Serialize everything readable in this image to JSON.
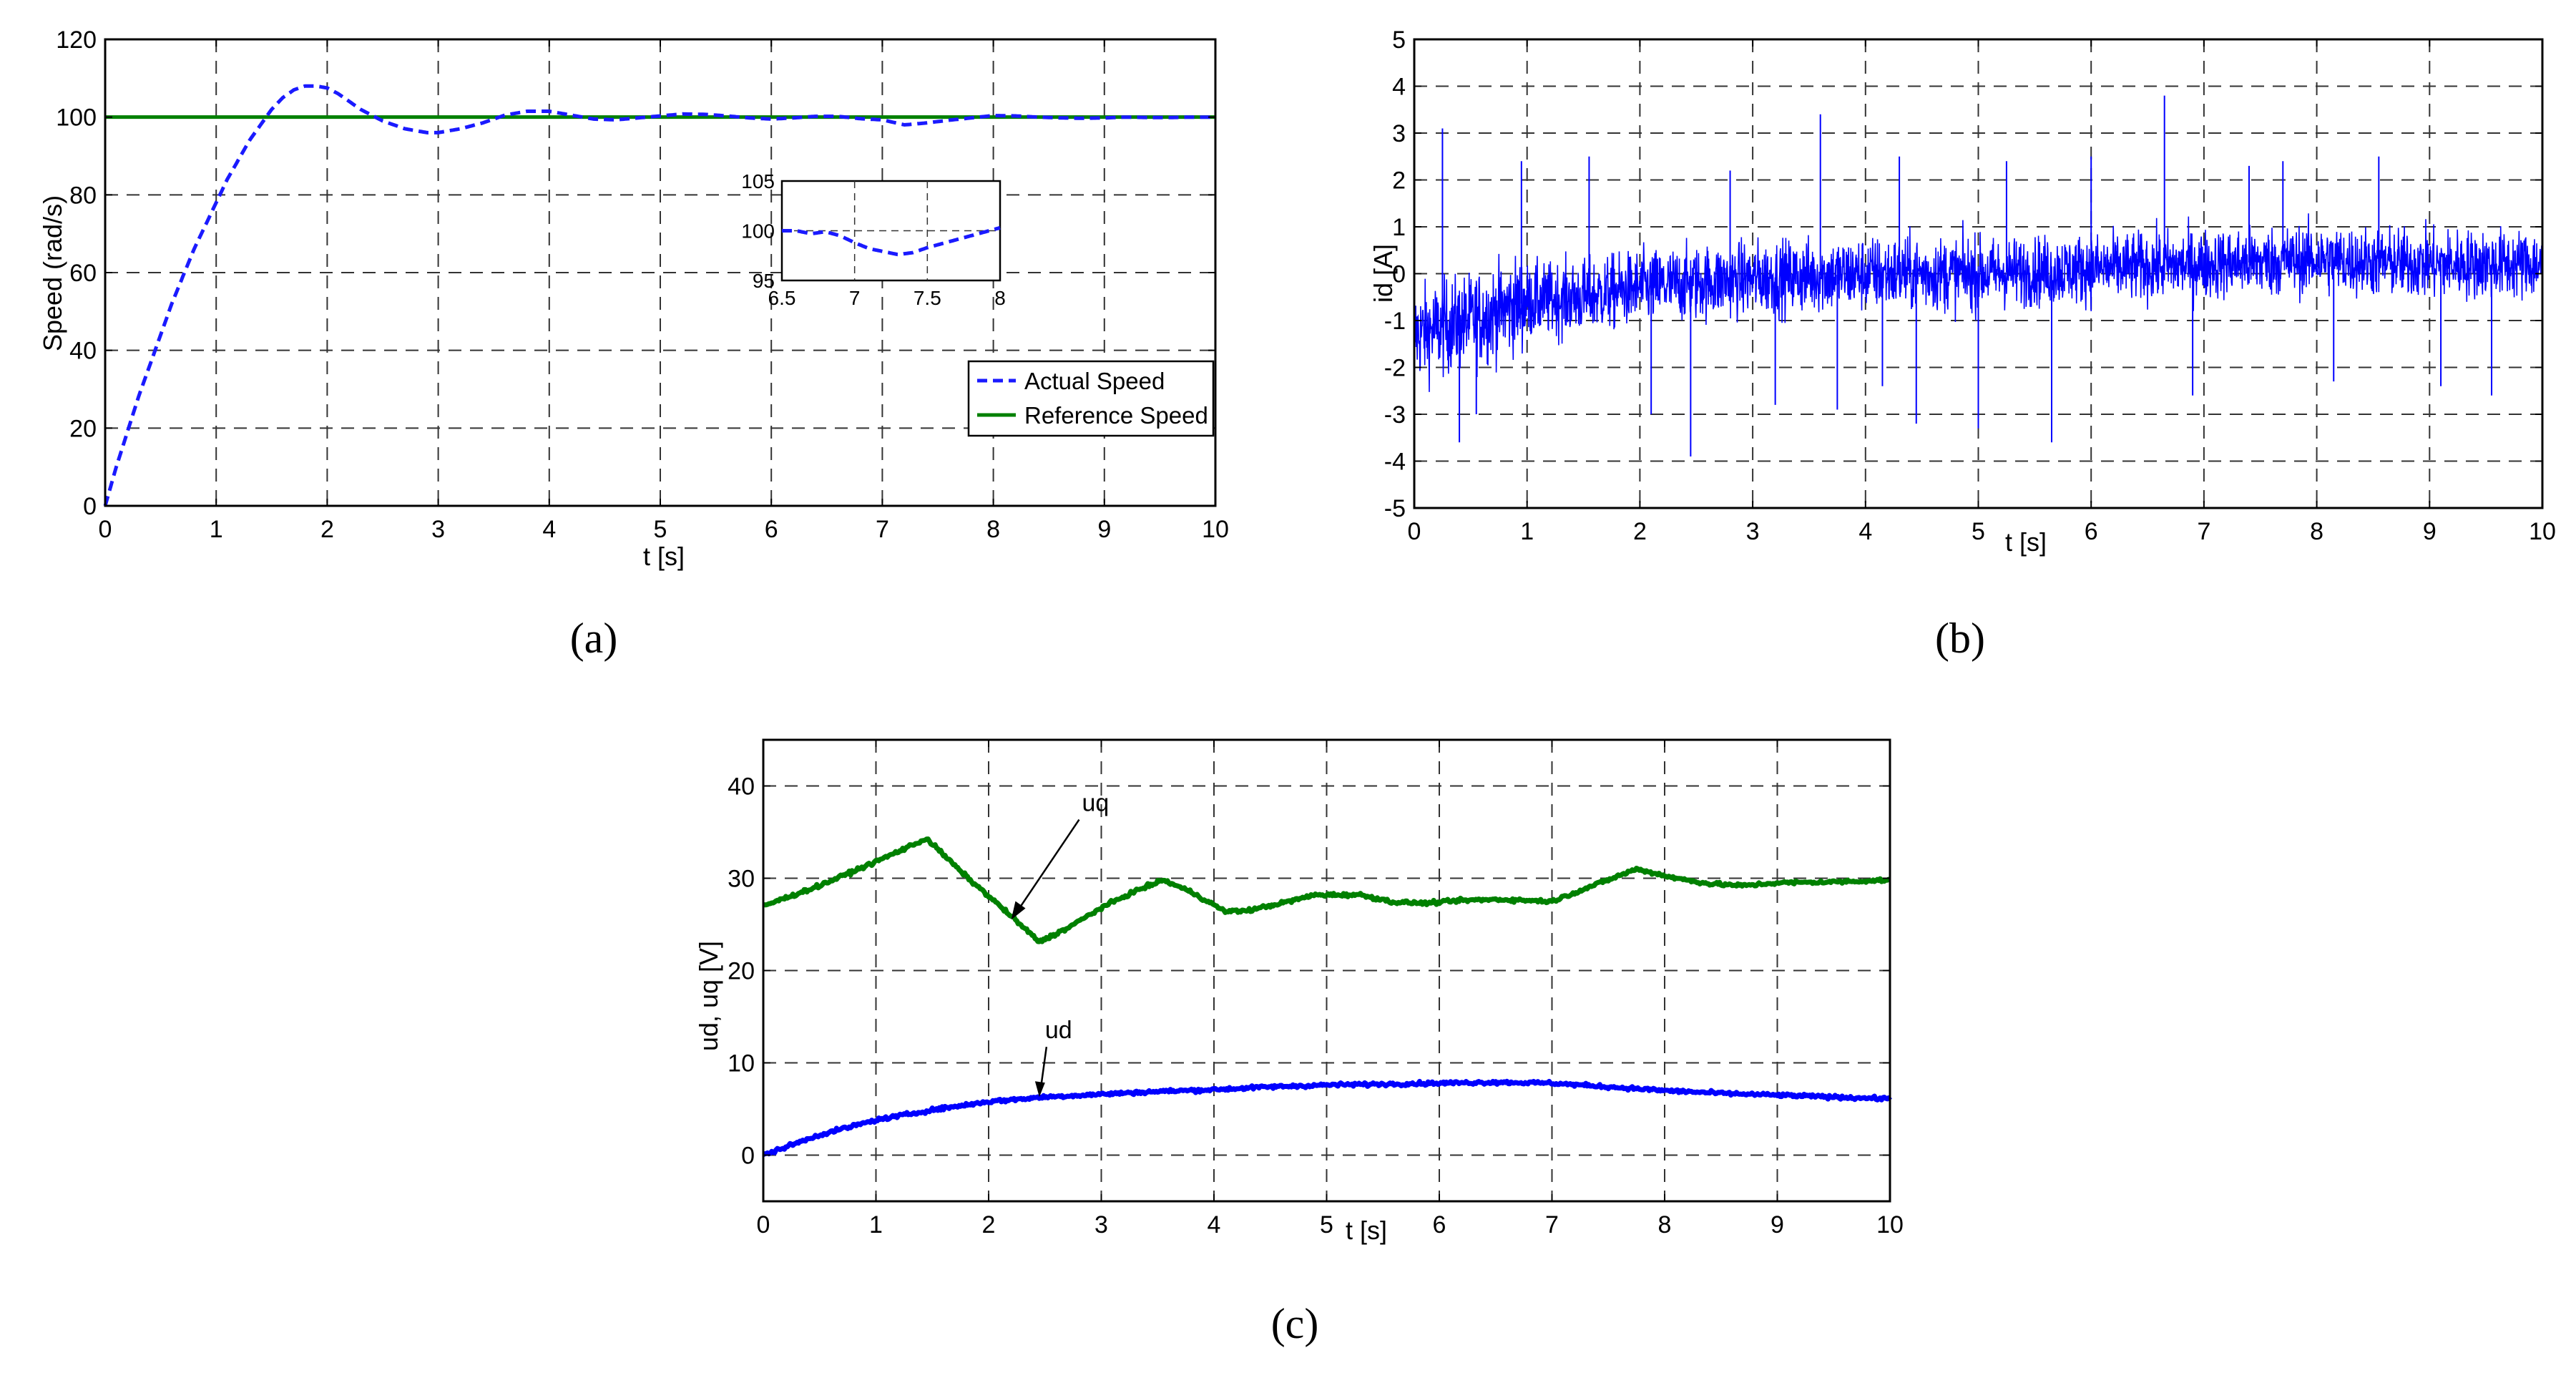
{
  "chart_data": [
    {
      "type": "line",
      "panel_label": "(a)",
      "xlabel": "t [s]",
      "ylabel": "Speed (rad/s)",
      "xlim": [
        0,
        10
      ],
      "ylim": [
        0,
        120
      ],
      "xticks": [
        0,
        1,
        2,
        3,
        4,
        5,
        6,
        7,
        8,
        9,
        10
      ],
      "yticks": [
        0,
        20,
        40,
        60,
        80,
        100,
        120
      ],
      "grid": true,
      "legend_position": "bottom-right",
      "series": [
        {
          "name": "Actual Speed",
          "color": "#1a1aff",
          "style": "dashed",
          "x": [
            0,
            0.1,
            0.2,
            0.3,
            0.4,
            0.5,
            0.6,
            0.7,
            0.8,
            0.9,
            1.0,
            1.1,
            1.2,
            1.3,
            1.4,
            1.5,
            1.6,
            1.7,
            1.8,
            1.9,
            2.0,
            2.1,
            2.2,
            2.3,
            2.4,
            2.5,
            2.6,
            2.7,
            2.8,
            2.9,
            3.0,
            3.2,
            3.4,
            3.6,
            3.8,
            4.0,
            4.2,
            4.4,
            4.6,
            4.8,
            5.0,
            5.2,
            5.4,
            5.6,
            5.8,
            6.0,
            6.2,
            6.4,
            6.6,
            6.8,
            7.0,
            7.2,
            7.4,
            7.6,
            7.8,
            8.0,
            8.2,
            8.4,
            8.6,
            8.8,
            9.0,
            9.2,
            9.4,
            9.6,
            9.8,
            10.0
          ],
          "y": [
            0,
            10,
            19,
            28,
            36,
            44,
            52,
            59,
            66,
            72,
            78,
            84,
            89,
            94,
            98,
            102,
            105,
            107,
            108,
            108,
            107.5,
            106,
            104,
            102,
            100.5,
            99,
            98,
            97,
            96.5,
            96,
            96,
            97,
            98.5,
            100.5,
            101.5,
            101.5,
            100.5,
            99.5,
            99.3,
            99.8,
            100.3,
            100.8,
            100.7,
            100.3,
            99.8,
            99.5,
            99.8,
            100.2,
            100.2,
            99.6,
            99.3,
            98,
            98.5,
            99.2,
            99.8,
            100.4,
            100.3,
            100,
            99.8,
            99.7,
            99.8,
            100,
            99.9,
            99.9,
            100,
            100
          ]
        },
        {
          "name": "Reference Speed",
          "color": "#008000",
          "style": "solid",
          "x": [
            0,
            10
          ],
          "y": [
            100,
            100
          ]
        }
      ],
      "inset": {
        "xlim": [
          6.5,
          8
        ],
        "ylim": [
          95,
          105
        ],
        "xticks": [
          6.5,
          7,
          7.5,
          8
        ],
        "xtick_labels": [
          "6.5",
          "7",
          "7.5",
          "8"
        ],
        "yticks": [
          95,
          100,
          105
        ],
        "x": [
          6.5,
          6.6,
          6.7,
          6.8,
          6.9,
          7.0,
          7.1,
          7.2,
          7.3,
          7.4,
          7.5,
          7.6,
          7.7,
          7.8,
          7.9,
          8.0
        ],
        "y": [
          100,
          100,
          99.7,
          99.9,
          99.5,
          98.8,
          98.2,
          97.9,
          97.6,
          97.8,
          98.3,
          98.7,
          99.1,
          99.5,
          99.9,
          100.3
        ]
      }
    },
    {
      "type": "line",
      "panel_label": "(b)",
      "xlabel": "t [s]",
      "ylabel": "id [A]",
      "xlim": [
        0,
        10
      ],
      "ylim": [
        -5,
        5
      ],
      "xticks": [
        0,
        1,
        2,
        3,
        4,
        5,
        6,
        7,
        8,
        9,
        10
      ],
      "yticks": [
        -5,
        -4,
        -3,
        -2,
        -1,
        0,
        1,
        2,
        3,
        4,
        5
      ],
      "grid": true,
      "series": [
        {
          "color": "#0000ff",
          "style": "noisy",
          "mean_x": [
            0,
            0.5,
            1.0,
            1.5,
            2.0,
            3.0,
            4.0,
            4.5,
            5.0,
            6.0,
            7.0,
            8.0,
            9.0,
            10.0
          ],
          "mean_y": [
            -1.3,
            -1.0,
            -0.6,
            -0.5,
            -0.3,
            -0.1,
            0.0,
            0.0,
            0.0,
            0.1,
            0.2,
            0.3,
            0.2,
            0.2
          ],
          "spike_x": [
            0.25,
            0.4,
            0.55,
            0.95,
            1.55,
            2.1,
            2.45,
            2.8,
            3.2,
            3.6,
            3.75,
            4.15,
            4.3,
            4.45,
            5.0,
            5.25,
            5.65,
            6.0,
            6.65,
            6.9,
            7.4,
            7.7,
            8.15,
            8.55,
            9.1,
            9.55
          ],
          "spike_y": [
            3.1,
            -3.6,
            -3.0,
            2.4,
            2.5,
            -3.0,
            -3.9,
            2.2,
            -2.8,
            3.4,
            -2.9,
            -2.4,
            2.5,
            -3.2,
            -3.3,
            2.4,
            -3.6,
            2.5,
            3.8,
            -2.6,
            2.3,
            2.4,
            -2.3,
            2.5,
            -2.4,
            -2.6
          ]
        }
      ]
    },
    {
      "type": "line",
      "panel_label": "(c)",
      "xlabel": "t [s]",
      "ylabel": "ud, uq [V]",
      "xlim": [
        0,
        10
      ],
      "ylim": [
        -5,
        45
      ],
      "xticks": [
        0,
        1,
        2,
        3,
        4,
        5,
        6,
        7,
        8,
        9,
        10
      ],
      "yticks": [
        0,
        10,
        20,
        30,
        40
      ],
      "grid": true,
      "series": [
        {
          "name": "uq",
          "color": "#008000",
          "style": "solid",
          "x": [
            0,
            0.5,
            1.0,
            1.45,
            1.8,
            2.1,
            2.45,
            2.7,
            3.0,
            3.3,
            3.55,
            3.8,
            4.1,
            4.3,
            4.6,
            4.9,
            5.3,
            5.6,
            5.9,
            6.2,
            6.5,
            6.8,
            7.0,
            7.3,
            7.75,
            8.1,
            8.4,
            8.7,
            9.0,
            9.5,
            10.0
          ],
          "y": [
            27,
            29.2,
            31.8,
            34.3,
            30.2,
            27,
            23.1,
            24.6,
            26.8,
            28.6,
            29.8,
            28.5,
            26.4,
            26.5,
            27.3,
            28.2,
            28.2,
            27.4,
            27.3,
            27.6,
            27.7,
            27.6,
            27.5,
            28.9,
            31,
            30,
            29.4,
            29.2,
            29.5,
            29.6,
            29.8
          ]
        },
        {
          "name": "ud",
          "color": "#0000ff",
          "style": "solid",
          "x": [
            0,
            0.5,
            1.0,
            1.5,
            2.0,
            2.5,
            3.0,
            3.5,
            4.0,
            4.5,
            5.0,
            5.5,
            6.0,
            6.5,
            7.0,
            7.5,
            8.0,
            8.5,
            9.0,
            9.5,
            10.0
          ],
          "y": [
            0,
            2.2,
            3.8,
            4.9,
            5.8,
            6.3,
            6.6,
            6.9,
            7.1,
            7.4,
            7.6,
            7.7,
            7.8,
            7.9,
            7.8,
            7.4,
            7.0,
            6.7,
            6.5,
            6.3,
            6.1
          ]
        }
      ],
      "annotations": [
        {
          "text": "uq",
          "target_x": 2.2,
          "target_y": 25.5
        },
        {
          "text": "ud",
          "target_x": 2.45,
          "target_y": 6.3
        }
      ]
    }
  ]
}
